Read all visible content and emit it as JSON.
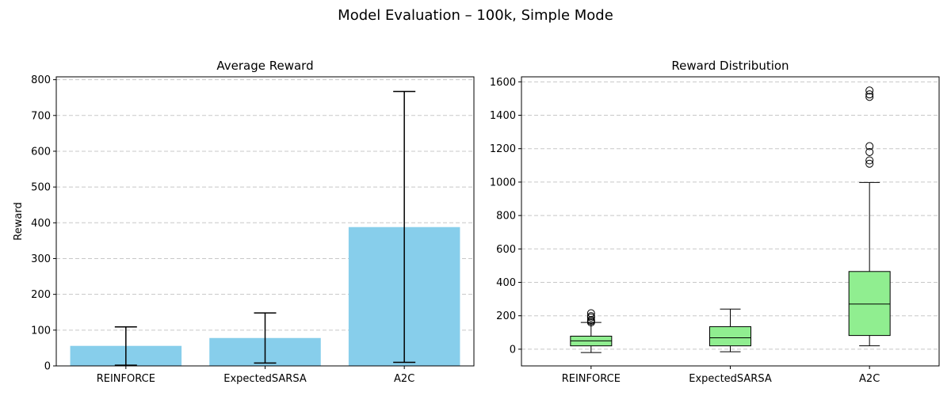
{
  "suptitle": "Model Evaluation – 100k, Simple Mode",
  "chart_data": [
    {
      "type": "bar",
      "title": "Average Reward",
      "xlabel": "",
      "ylabel": "Reward",
      "categories": [
        "REINFORCE",
        "ExpectedSARSA",
        "A2C"
      ],
      "values": [
        56,
        78,
        388
      ],
      "error_low": [
        2,
        8,
        10
      ],
      "error_high": [
        109,
        148,
        767
      ],
      "ylim": [
        0,
        808
      ],
      "yticks": [
        0,
        100,
        200,
        300,
        400,
        500,
        600,
        700,
        800
      ],
      "grid": "y",
      "bar_color": "#87CEEB"
    },
    {
      "type": "box",
      "title": "Reward Distribution",
      "xlabel": "",
      "ylabel": "",
      "categories": [
        "REINFORCE",
        "ExpectedSARSA",
        "A2C"
      ],
      "boxes": [
        {
          "whisker_low": -20,
          "q1": 20,
          "median": 50,
          "q3": 78,
          "whisker_high": 160,
          "outliers": [
            160,
            168,
            175,
            190,
            198,
            215
          ]
        },
        {
          "whisker_low": -15,
          "q1": 20,
          "median": 68,
          "q3": 135,
          "whisker_high": 240,
          "outliers": []
        },
        {
          "whisker_low": 20,
          "q1": 82,
          "median": 270,
          "q3": 465,
          "whisker_high": 998,
          "outliers": [
            1110,
            1130,
            1180,
            1215,
            1510,
            1525,
            1548
          ]
        }
      ],
      "ylim": [
        -100,
        1630
      ],
      "yticks": [
        0,
        200,
        400,
        600,
        800,
        1000,
        1200,
        1400,
        1600
      ],
      "grid": "y",
      "box_color": "#90EE90"
    }
  ]
}
